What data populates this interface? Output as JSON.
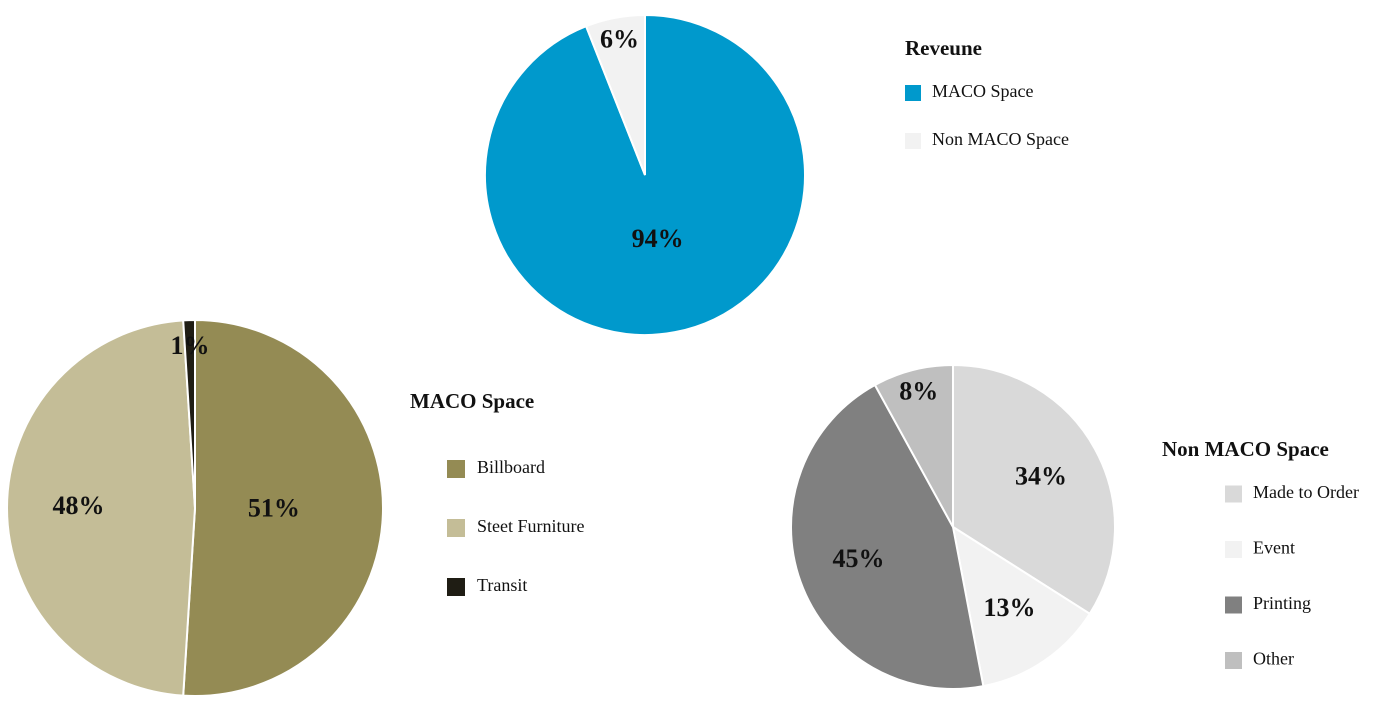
{
  "chart_data": [
    {
      "type": "pie",
      "legend_title": "Reveune",
      "categories": [
        "MACO Space",
        "Non MACO Space"
      ],
      "values": [
        94,
        6
      ],
      "value_labels": [
        "94%",
        "6%"
      ],
      "colors": [
        "#0099cc",
        "#f2f2f2"
      ]
    },
    {
      "type": "pie",
      "legend_title": "MACO Space",
      "categories": [
        "Billboard",
        "Steet Furniture",
        "Transit"
      ],
      "values": [
        51,
        48,
        1
      ],
      "value_labels": [
        "51%",
        "48%",
        "1%"
      ],
      "colors": [
        "#948b54",
        "#c4bd97",
        "#1f1d14"
      ]
    },
    {
      "type": "pie",
      "legend_title": "Non MACO Space",
      "categories": [
        "Made to Order",
        "Event",
        "Printing",
        "Other"
      ],
      "values": [
        34,
        13,
        45,
        8
      ],
      "value_labels": [
        "34%",
        "13%",
        "45%",
        "8%"
      ],
      "colors": [
        "#d9d9d9",
        "#f2f2f2",
        "#808080",
        "#bfbfbf"
      ]
    }
  ]
}
